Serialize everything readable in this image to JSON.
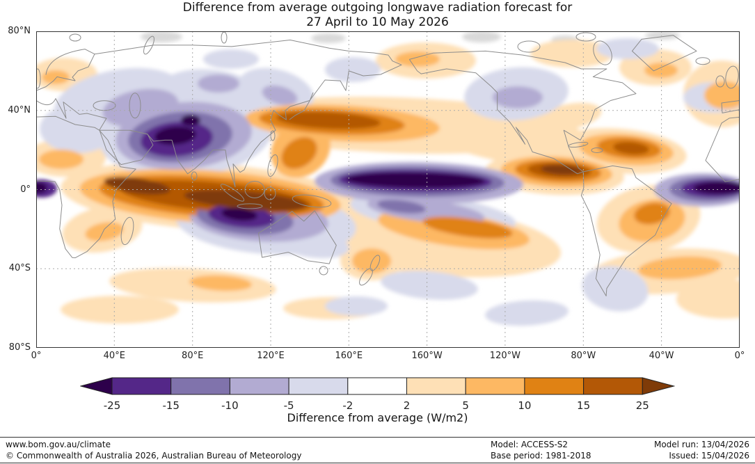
{
  "title": {
    "line1": "Difference from average outgoing longwave radiation forecast for",
    "line2": "27 April to 10 May 2026"
  },
  "map_axes": {
    "lat_ticks": [
      "80°N",
      "40°N",
      "0°",
      "40°S",
      "80°S"
    ],
    "lon_ticks": [
      "0°",
      "40°E",
      "80°E",
      "120°E",
      "160°E",
      "160°W",
      "120°W",
      "80°W",
      "40°W",
      "0°"
    ]
  },
  "colorbar": {
    "label": "Difference from average (W/m2)",
    "ticks": [
      "-25",
      "-15",
      "-10",
      "-5",
      "-2",
      "2",
      "5",
      "10",
      "15",
      "25"
    ],
    "cell_colors": [
      "#542788",
      "#8073ac",
      "#b2abd2",
      "#d8daeb",
      "#ffffff",
      "#fee0b6",
      "#fdb863",
      "#e08214",
      "#b35806"
    ],
    "arrow_left_color": "#2d004b",
    "arrow_right_color": "#7f3b08"
  },
  "colors": {
    "purple_levels": [
      "#d8daeb",
      "#b2abd2",
      "#8073ac",
      "#542788",
      "#2d004b"
    ],
    "orange_levels": [
      "#fee0b6",
      "#fdb863",
      "#e08214",
      "#b35806",
      "#7f3b08"
    ],
    "coastline": "#8c8c8c",
    "grid": "#aaaaaa",
    "border": "#333333",
    "arctic_gray": "#d9d9d9"
  },
  "footer": {
    "site": "www.bom.gov.au/climate",
    "copyright": "© Commonwealth of Australia 2026, Australian Bureau of Meteorology",
    "model": "Model: ACCESS-S2",
    "base_period": "Base period: 1981-2018",
    "model_run": "Model run: 13/04/2026",
    "issued": "Issued: 15/04/2026"
  },
  "chart_data": {
    "type": "heatmap",
    "title": "Difference from average outgoing longwave radiation forecast for 27 April to 10 May 2026",
    "variable": "Outgoing longwave radiation anomaly",
    "units": "W/m2",
    "colorbar_label": "Difference from average (W/m2)",
    "scale_breaks": [
      -25,
      -15,
      -10,
      -5,
      -2,
      2,
      5,
      10,
      15,
      25
    ],
    "negative_color_family": "purple",
    "positive_color_family": "orange-brown",
    "lat_range": [
      "80°S",
      "80°N"
    ],
    "lon_ticks": [
      "0°",
      "40°E",
      "80°E",
      "120°E",
      "160°E",
      "160°W",
      "120°W",
      "80°W",
      "40°W",
      "0°"
    ],
    "negative_regions": [
      {
        "area": "South Asia / India and Tibetan Plateau",
        "approx": "55-100°E, 10-35°N",
        "peak_wm2": -25
      },
      {
        "area": "Central equatorial Pacific",
        "approx": "160°E-130°W, 5°S-8°N",
        "peak_wm2": -25
      },
      {
        "area": "Equatorial Atlantic near Greenwich meridian",
        "approx": "25°W-5°E, 5°S-6°N",
        "peak_wm2": -25
      },
      {
        "area": "Southeast Indian Ocean",
        "approx": "80-130°E, 5-20°S",
        "peak_wm2": -25
      },
      {
        "area": "South-central Pacific band",
        "approx": "170°E-130°W, 5-17°S",
        "peak_wm2": -10
      },
      {
        "area": "Europe and central Asia",
        "approx": "0-70°E, 30-60°N",
        "peak_wm2": -5
      },
      {
        "area": "Central North America",
        "approx": "110-80°W, 30-55°N",
        "peak_wm2": -5
      }
    ],
    "positive_regions": [
      {
        "area": "Eastern Indian Ocean and Maritime Continent",
        "approx": "40-135°E, 12°N-10°S",
        "peak_wm2": 25
      },
      {
        "area": "Northwest Pacific",
        "approx": "130°E-180°, 20-40°N",
        "peak_wm2": 25
      },
      {
        "area": "East equatorial Pacific",
        "approx": "130-90°W, 0-10°N",
        "peak_wm2": 25
      },
      {
        "area": "Tropical North Atlantic and Caribbean",
        "approx": "80-20°W, 10-28°N",
        "peak_wm2": 15
      },
      {
        "area": "Subtropical South Pacific",
        "approx": "165°E-115°W, 10-35°S",
        "peak_wm2": 10
      },
      {
        "area": "Eastern Brazil and South Atlantic",
        "approx": "55°W-0°, 5-45°S",
        "peak_wm2": 10
      },
      {
        "area": "Southern Indian Ocean",
        "approx": "20-150°E, 35-55°S",
        "peak_wm2": 5
      }
    ]
  }
}
